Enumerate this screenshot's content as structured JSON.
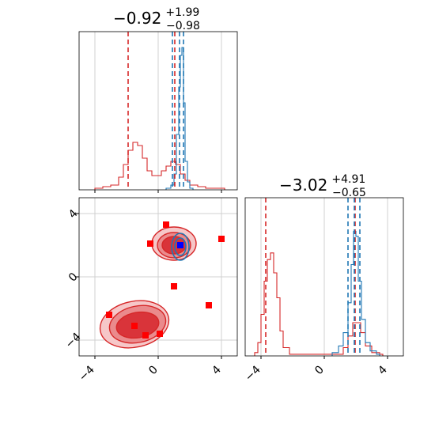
{
  "colors": {
    "blue": "#1f77b4",
    "red": "#d62728",
    "red_fill_dark": "#d9343a",
    "red_fill_mid": "#ea8a8c",
    "red_fill_light": "#f6c7c8",
    "marker_red": "#ff0000",
    "marker_blue": "#0000ff",
    "grid": "#d0d0d0"
  },
  "chart_data": {
    "type": "corner",
    "axis_range": {
      "x": [
        -5,
        5
      ],
      "y": [
        -5,
        5
      ]
    },
    "ticks": [
      -4,
      0,
      4
    ],
    "tick_labels": [
      "−4",
      "0",
      "4"
    ],
    "grid": true,
    "panels": [
      {
        "id": "x-marginal",
        "title_main": "−0.92",
        "title_upper": "+1.99",
        "title_lower": "−0.98",
        "blue_lines": [
          0.9,
          1.35,
          1.6
        ],
        "red_lines": [
          -1.9,
          1.05
        ],
        "red_hist": [
          [
            -4.0,
            0.01
          ],
          [
            -3.5,
            0.02
          ],
          [
            -3.0,
            0.03
          ],
          [
            -2.5,
            0.08
          ],
          [
            -2.2,
            0.16
          ],
          [
            -1.9,
            0.25
          ],
          [
            -1.6,
            0.3
          ],
          [
            -1.3,
            0.28
          ],
          [
            -1.0,
            0.2
          ],
          [
            -0.7,
            0.12
          ],
          [
            -0.4,
            0.09
          ],
          [
            -0.1,
            0.09
          ],
          [
            0.2,
            0.12
          ],
          [
            0.5,
            0.15
          ],
          [
            0.8,
            0.18
          ],
          [
            1.1,
            0.16
          ],
          [
            1.4,
            0.1
          ],
          [
            1.7,
            0.06
          ],
          [
            2.0,
            0.03
          ],
          [
            2.5,
            0.02
          ],
          [
            3.0,
            0.01
          ],
          [
            4.0,
            0.01
          ]
        ],
        "blue_hist": [
          [
            0.5,
            0.01
          ],
          [
            0.8,
            0.03
          ],
          [
            1.0,
            0.1
          ],
          [
            1.15,
            0.35
          ],
          [
            1.3,
            0.65
          ],
          [
            1.4,
            0.85
          ],
          [
            1.5,
            0.9
          ],
          [
            1.6,
            0.55
          ],
          [
            1.7,
            0.18
          ],
          [
            1.85,
            0.05
          ],
          [
            2.0,
            0.01
          ]
        ]
      },
      {
        "id": "y-marginal",
        "title_main": "−3.02",
        "title_upper": "+4.91",
        "title_lower": "−0.65",
        "blue_lines": [
          1.5,
          1.9,
          2.25
        ],
        "red_lines": [
          -3.7,
          1.95
        ],
        "red_hist": [
          [
            -4.4,
            0.02
          ],
          [
            -4.2,
            0.08
          ],
          [
            -4.0,
            0.25
          ],
          [
            -3.8,
            0.45
          ],
          [
            -3.6,
            0.58
          ],
          [
            -3.4,
            0.62
          ],
          [
            -3.2,
            0.5
          ],
          [
            -3.0,
            0.35
          ],
          [
            -2.8,
            0.15
          ],
          [
            -2.6,
            0.05
          ],
          [
            -2.2,
            0.01
          ],
          [
            0.8,
            0.01
          ],
          [
            1.2,
            0.05
          ],
          [
            1.5,
            0.12
          ],
          [
            1.8,
            0.2
          ],
          [
            2.0,
            0.2
          ],
          [
            2.3,
            0.14
          ],
          [
            2.6,
            0.06
          ],
          [
            3.0,
            0.02
          ],
          [
            3.5,
            0.01
          ]
        ],
        "blue_hist": [
          [
            0.5,
            0.02
          ],
          [
            0.9,
            0.06
          ],
          [
            1.2,
            0.14
          ],
          [
            1.5,
            0.32
          ],
          [
            1.7,
            0.55
          ],
          [
            1.85,
            0.75
          ],
          [
            2.0,
            0.72
          ],
          [
            2.15,
            0.45
          ],
          [
            2.35,
            0.22
          ],
          [
            2.6,
            0.08
          ],
          [
            2.9,
            0.03
          ],
          [
            3.3,
            0.01
          ]
        ]
      },
      {
        "id": "joint",
        "red_contours": [
          {
            "level": "outer",
            "cx": -1.5,
            "cy": -3.0,
            "rx": 2.2,
            "ry": 1.45,
            "rot": -12
          },
          {
            "level": "mid",
            "cx": -1.3,
            "cy": -3.0,
            "rx": 1.8,
            "ry": 1.15,
            "rot": -12
          },
          {
            "level": "inner",
            "cx": -1.3,
            "cy": -3.05,
            "rx": 1.35,
            "ry": 0.8,
            "rot": -10
          },
          {
            "level": "outer",
            "cx": 1.0,
            "cy": 2.1,
            "rx": 1.4,
            "ry": 1.05,
            "rot": 0
          },
          {
            "level": "mid",
            "cx": 1.0,
            "cy": 2.0,
            "rx": 1.05,
            "ry": 0.8,
            "rot": 0
          },
          {
            "level": "inner",
            "cx": 1.0,
            "cy": 2.0,
            "rx": 0.75,
            "ry": 0.55,
            "rot": 0
          }
        ],
        "blue_contours": [
          {
            "cx": 1.4,
            "cy": 1.9,
            "rx": 0.55,
            "ry": 0.85,
            "rot": 0
          },
          {
            "cx": 1.4,
            "cy": 1.9,
            "rx": 0.35,
            "ry": 0.55,
            "rot": 0
          }
        ],
        "red_markers": [
          [
            0.5,
            3.3
          ],
          [
            -0.5,
            2.1
          ],
          [
            4.0,
            2.4
          ],
          [
            1.0,
            -0.6
          ],
          [
            3.2,
            -1.8
          ],
          [
            -3.1,
            -2.4
          ],
          [
            -1.5,
            -3.1
          ],
          [
            -0.8,
            -3.7
          ],
          [
            0.1,
            -3.6
          ]
        ],
        "blue_markers": [
          [
            1.4,
            2.0
          ]
        ],
        "crosshair_red": {
          "x": -0.92,
          "y": -3.02
        }
      }
    ]
  }
}
